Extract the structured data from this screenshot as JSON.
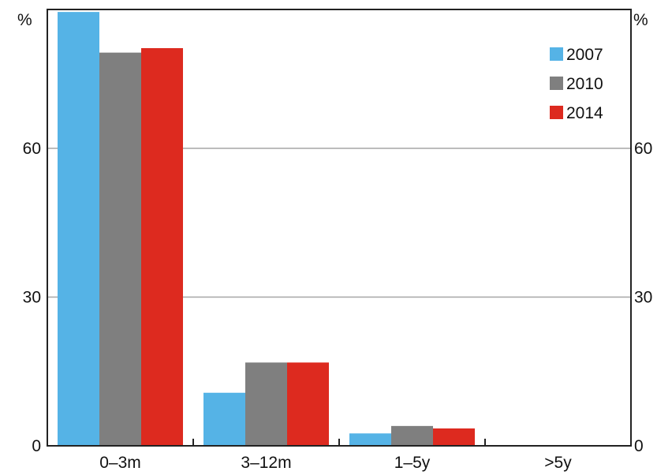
{
  "chart_data": {
    "type": "bar",
    "categories": [
      "0–3m",
      "3–12m",
      "1–5y",
      ">5y"
    ],
    "series": [
      {
        "name": "2007",
        "color": "#55b3e6",
        "values": [
          87.5,
          10.7,
          2.5,
          0
        ]
      },
      {
        "name": "2010",
        "color": "#7f7f7f",
        "values": [
          79.3,
          16.8,
          4.0,
          0
        ]
      },
      {
        "name": "2014",
        "color": "#dd2a1f",
        "values": [
          80.2,
          16.8,
          3.5,
          0
        ]
      }
    ],
    "y_unit_left": "%",
    "y_unit_right": "%",
    "yticks": [
      0,
      30,
      60
    ],
    "ylim": [
      0,
      88
    ],
    "grid": true,
    "legend_position": "top-right"
  }
}
